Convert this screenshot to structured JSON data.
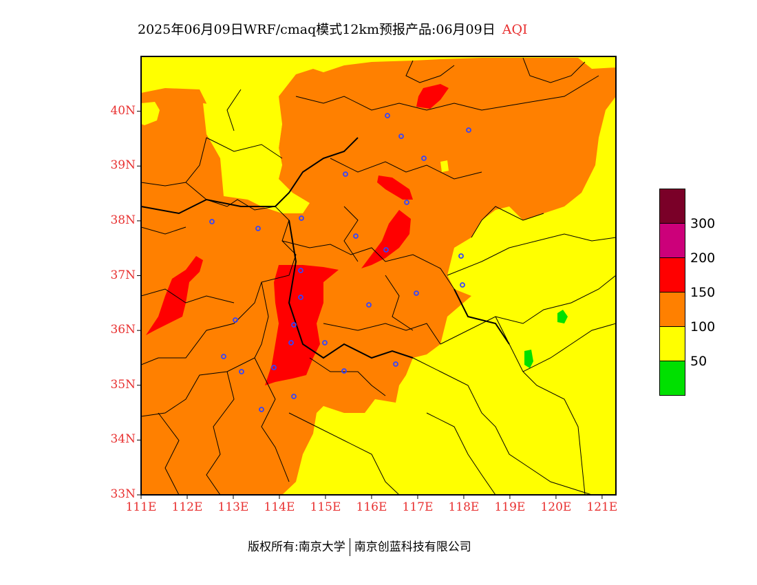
{
  "title": {
    "main": "2025年06月09日WRF/cmaq模式12km预报产品:06月09日",
    "variable": "AQI"
  },
  "axes": {
    "lat_labels": [
      "40N",
      "39N",
      "38N",
      "37N",
      "36N",
      "35N",
      "34N",
      "33N"
    ],
    "lon_labels": [
      "111E",
      "112E",
      "113E",
      "114E",
      "115E",
      "116E",
      "117E",
      "118E",
      "119E",
      "120E",
      "121E"
    ],
    "lat_range": [
      33,
      41
    ],
    "lon_range": [
      111,
      121.3
    ]
  },
  "legend": {
    "thresholds": [
      "300",
      "200",
      "150",
      "100",
      "50"
    ],
    "colors": [
      "#7a0028",
      "#cc007a",
      "#ff0000",
      "#ff8000",
      "#ffff00",
      "#00e000"
    ]
  },
  "footer": {
    "copyright": "版权所有:南京大学",
    "company": "南京创蓝科技有限公司"
  }
}
